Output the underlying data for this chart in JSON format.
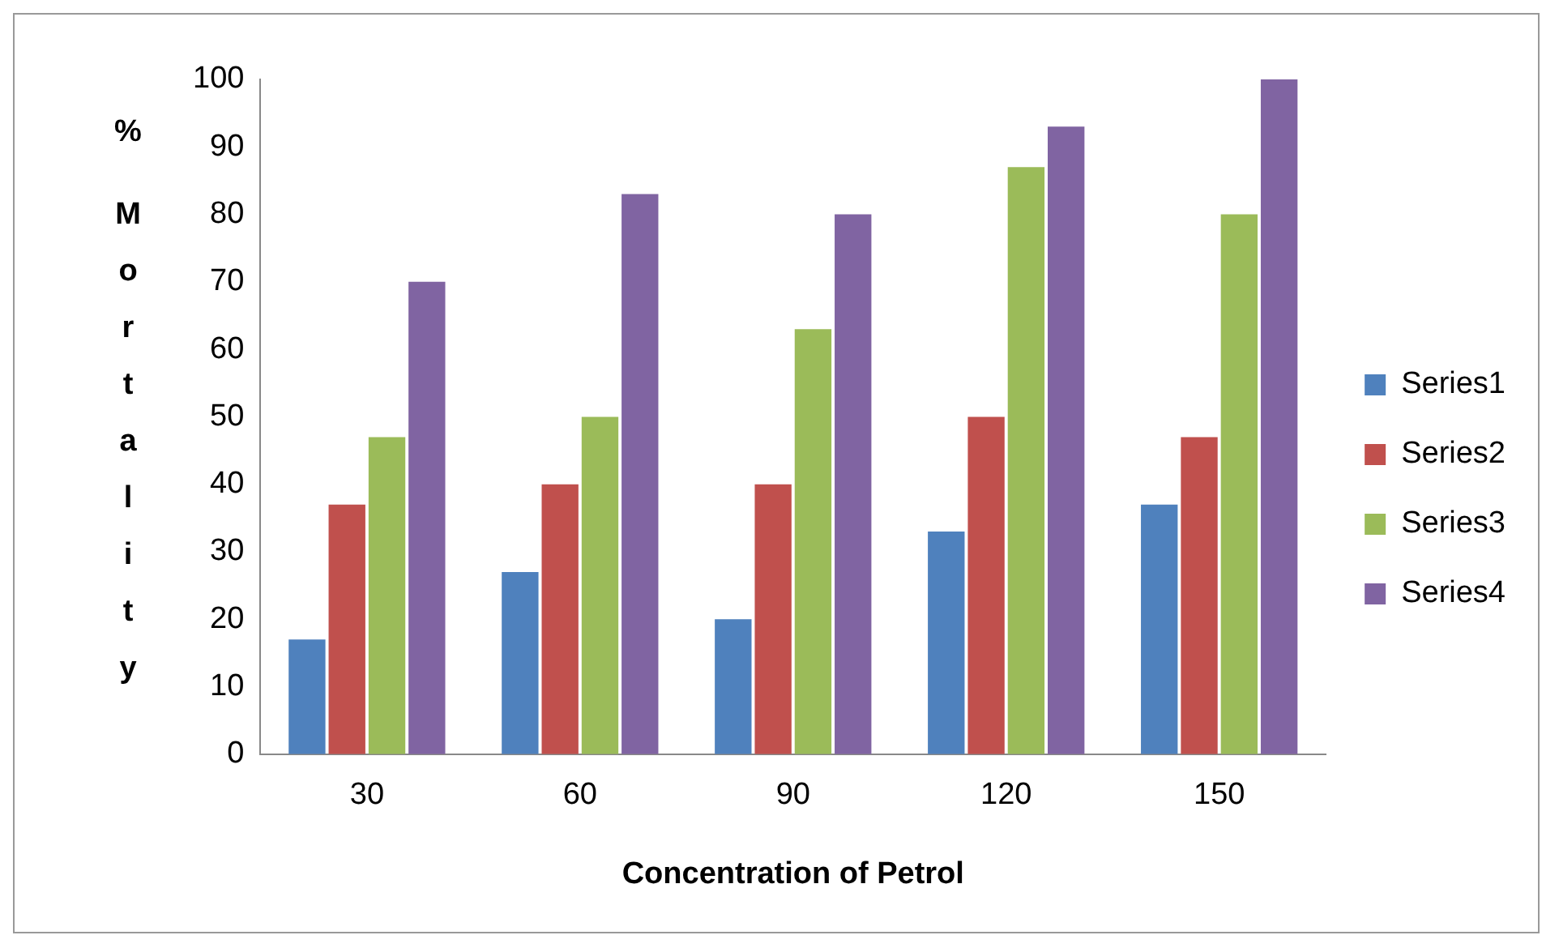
{
  "chart_data": {
    "type": "bar",
    "xlabel": "Concentration of Petrol",
    "ylabel": "% Mortality",
    "categories": [
      "30",
      "60",
      "90",
      "120",
      "150"
    ],
    "series": [
      {
        "name": "Series1",
        "color": "#4f81bd",
        "values": [
          17,
          27,
          20,
          33,
          37
        ]
      },
      {
        "name": "Series2",
        "color": "#c0504d",
        "values": [
          37,
          40,
          40,
          50,
          47
        ]
      },
      {
        "name": "Series3",
        "color": "#9bbb59",
        "values": [
          47,
          50,
          63,
          87,
          80
        ]
      },
      {
        "name": "Series4",
        "color": "#8064a2",
        "values": [
          70,
          83,
          80,
          93,
          100
        ]
      }
    ],
    "ylim": [
      0,
      100
    ],
    "yticks": [
      0,
      10,
      20,
      30,
      40,
      50,
      60,
      70,
      80,
      90,
      100
    ],
    "grid": false,
    "legend": "right"
  }
}
